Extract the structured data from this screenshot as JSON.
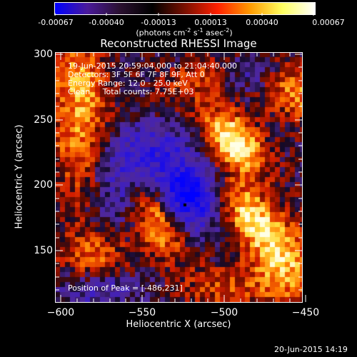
{
  "colorbar": {
    "ticks": [
      "-0.00067",
      "-0.00040",
      "-0.00013",
      "0.00013",
      "0.00040",
      "0.00067"
    ],
    "units_main": "(photons cm",
    "units_sup1": "-2",
    "units_mid": " s",
    "units_sup2": "-1",
    "units_mid2": " asec",
    "units_sup3": "-2",
    "units_end": ")",
    "gradient": [
      "#0000ff",
      "#4a1a9a",
      "#2a1030",
      "#000000",
      "#7a1000",
      "#ff2000",
      "#ff9a00",
      "#ffff60",
      "#ffffff"
    ]
  },
  "plot": {
    "title": "Reconstructed RHESSI Image",
    "xlabel": "Heliocentric X (arcsec)",
    "ylabel": "Heliocentric Y (arcsec)",
    "xticks": [
      "−600",
      "−550",
      "−500",
      "−450"
    ],
    "yticks": [
      "300",
      "250",
      "200",
      "150"
    ],
    "info": [
      "19-Jun-2015 20:59:04.000 to 21:04:40.000",
      "Detectors: 3F 5F 6F 7F 8F 9F, Att 0",
      "Energy Range: 12.0 - 25.0 keV",
      "Clean     Total counts: 7.75E+03"
    ],
    "peak_label": "Position of Peak = [-486,231]"
  },
  "footer": {
    "timestamp": "20-Jun-2015 14:19"
  }
}
